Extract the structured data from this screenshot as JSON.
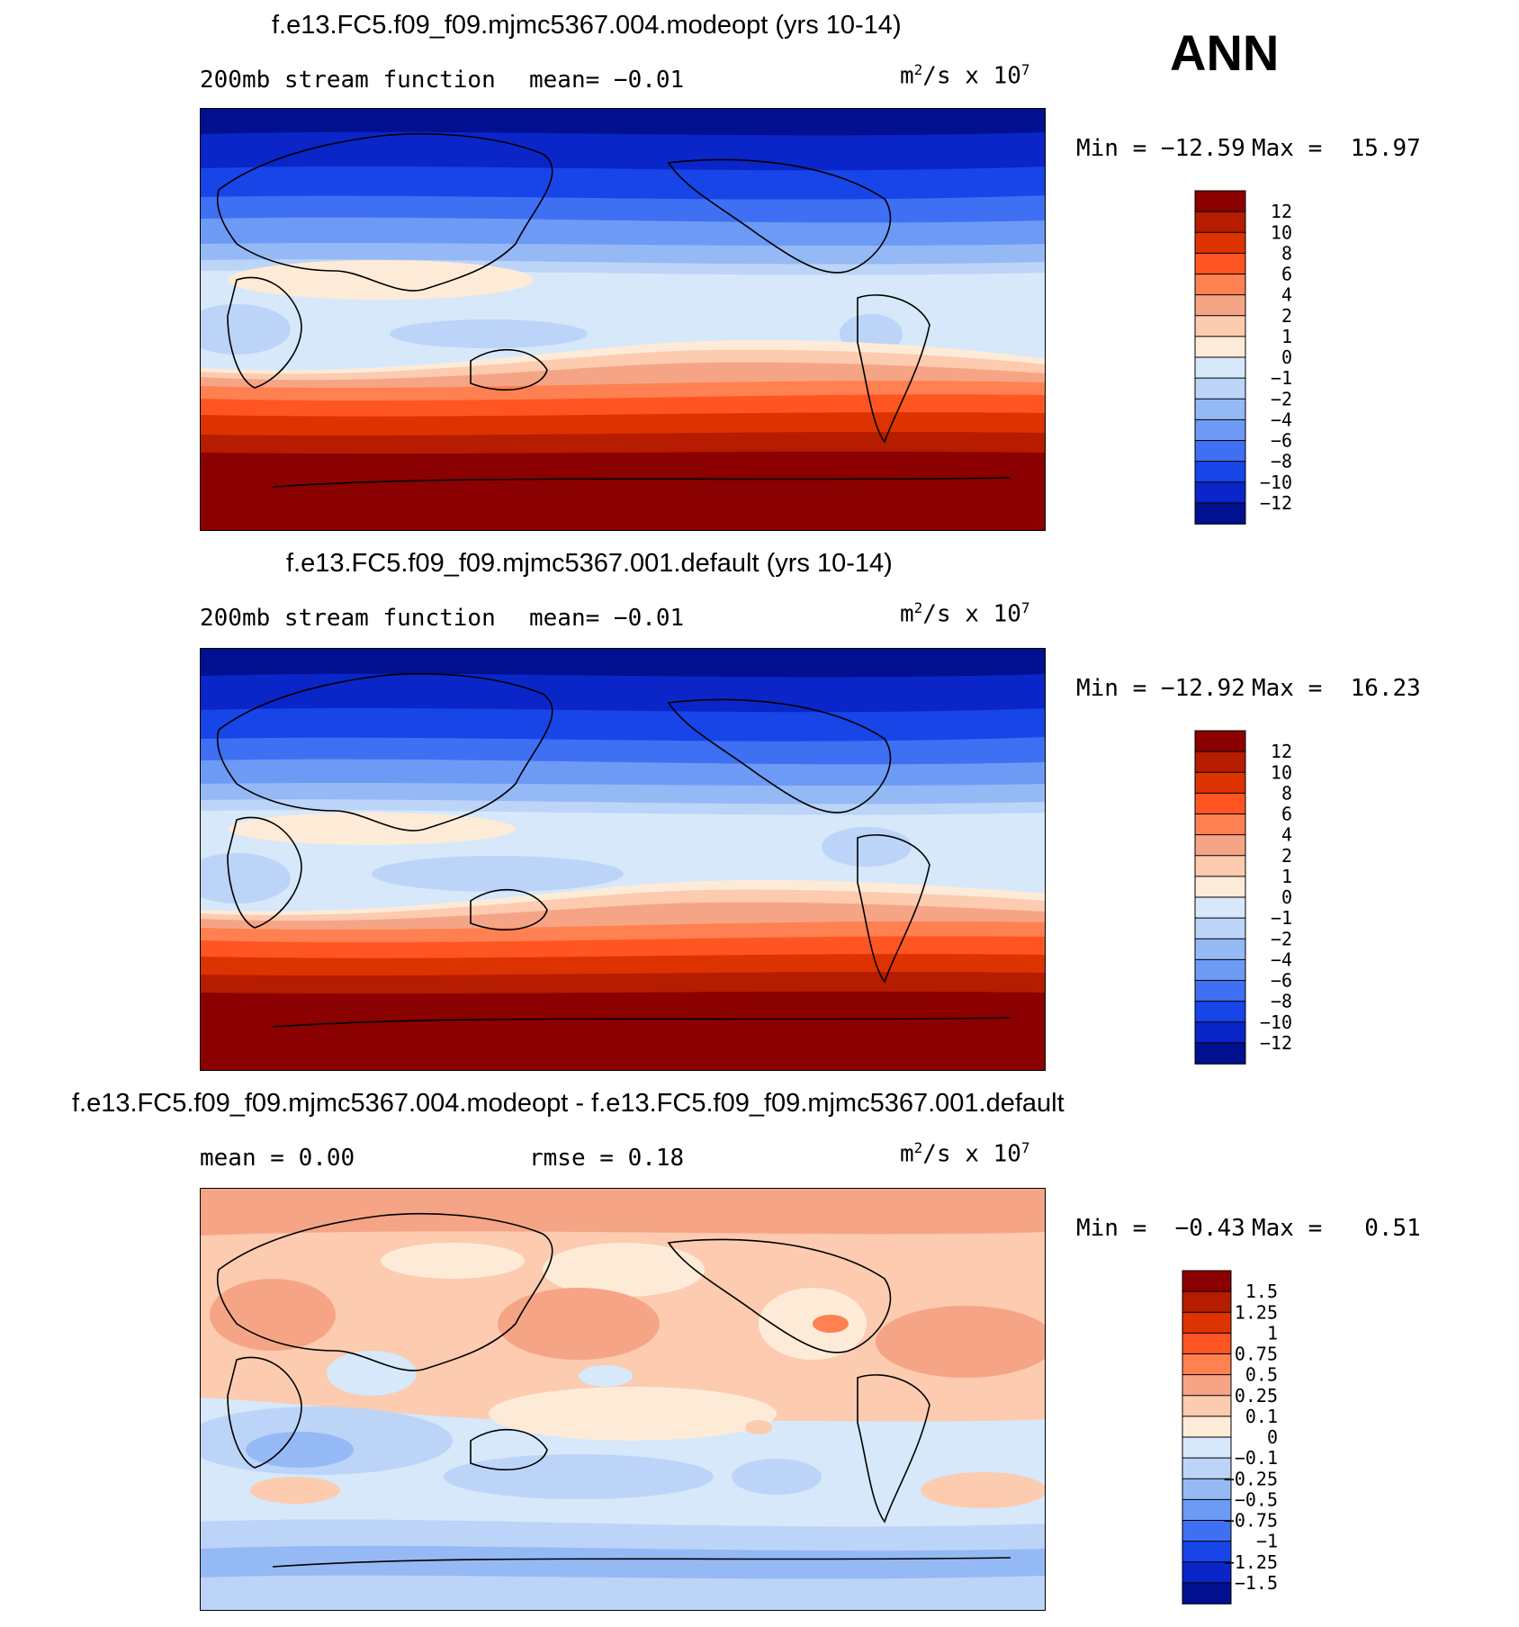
{
  "season": "ANN",
  "units": {
    "base": "m",
    "exp": "2",
    "mid": "/s x 10",
    "pow": "7"
  },
  "chart_data": [
    {
      "type": "heatmap",
      "title": "f.e13.FC5.f09_f09.mjmc5367.004.modeopt (yrs 10-14)",
      "variable": "200mb stream function",
      "mean_text": "mean=  −0.01",
      "min_text": "Min = −12.59",
      "max_text": "Max =  15.97",
      "levels": [
        "12",
        "10",
        "8",
        "6",
        "4",
        "2",
        "1",
        "0",
        "−1",
        "−2",
        "−4",
        "−6",
        "−8",
        "−10",
        "−12"
      ],
      "colors": [
        "#8b0000",
        "#b51c00",
        "#dd3300",
        "#ff5522",
        "#ff8050",
        "#f5a585",
        "#fccbb0",
        "#fdebd8",
        "#d6e8fa",
        "#bcd4f7",
        "#95b9f5",
        "#6c9af5",
        "#3f6ff2",
        "#1745e8",
        "#0a25c8",
        "#00108f"
      ]
    },
    {
      "type": "heatmap",
      "title": "f.e13.FC5.f09_f09.mjmc5367.001.default (yrs 10-14)",
      "variable": "200mb stream function",
      "mean_text": "mean=  −0.01",
      "min_text": "Min = −12.92",
      "max_text": "Max =  16.23",
      "levels": [
        "12",
        "10",
        "8",
        "6",
        "4",
        "2",
        "1",
        "0",
        "−1",
        "−2",
        "−4",
        "−6",
        "−8",
        "−10",
        "−12"
      ],
      "colors": [
        "#8b0000",
        "#b51c00",
        "#dd3300",
        "#ff5522",
        "#ff8050",
        "#f5a585",
        "#fccbb0",
        "#fdebd8",
        "#d6e8fa",
        "#bcd4f7",
        "#95b9f5",
        "#6c9af5",
        "#3f6ff2",
        "#1745e8",
        "#0a25c8",
        "#00108f"
      ]
    },
    {
      "type": "heatmap",
      "title": "f.e13.FC5.f09_f09.mjmc5367.004.modeopt - f.e13.FC5.f09_f09.mjmc5367.001.default",
      "mean_text": "mean =   0.00",
      "rmse_text": "rmse =   0.18",
      "min_text": "Min =  −0.43",
      "max_text": "Max =   0.51",
      "levels": [
        "1.5",
        "1.25",
        "1",
        "0.75",
        "0.5",
        "0.25",
        "0.1",
        "0",
        "−0.1",
        "−0.25",
        "−0.5",
        "−0.75",
        "−1",
        "−1.25",
        "−1.5"
      ],
      "colors": [
        "#8b0000",
        "#b51c00",
        "#dd3300",
        "#ff5522",
        "#ff8050",
        "#f5a585",
        "#fccbb0",
        "#fdebd8",
        "#d6e8fa",
        "#bcd4f7",
        "#95b9f5",
        "#6c9af5",
        "#3f6ff2",
        "#1745e8",
        "#0a25c8",
        "#00108f"
      ]
    }
  ]
}
